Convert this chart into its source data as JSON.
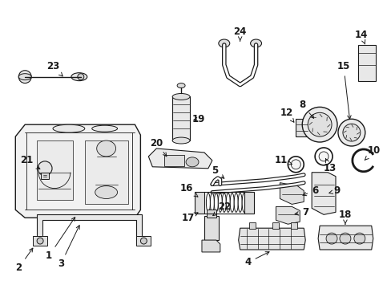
{
  "bg_color": "#ffffff",
  "line_color": "#1a1a1a",
  "font_size": 8.5,
  "parts_layout": "toyota_fuel_supply_2000_corolla"
}
